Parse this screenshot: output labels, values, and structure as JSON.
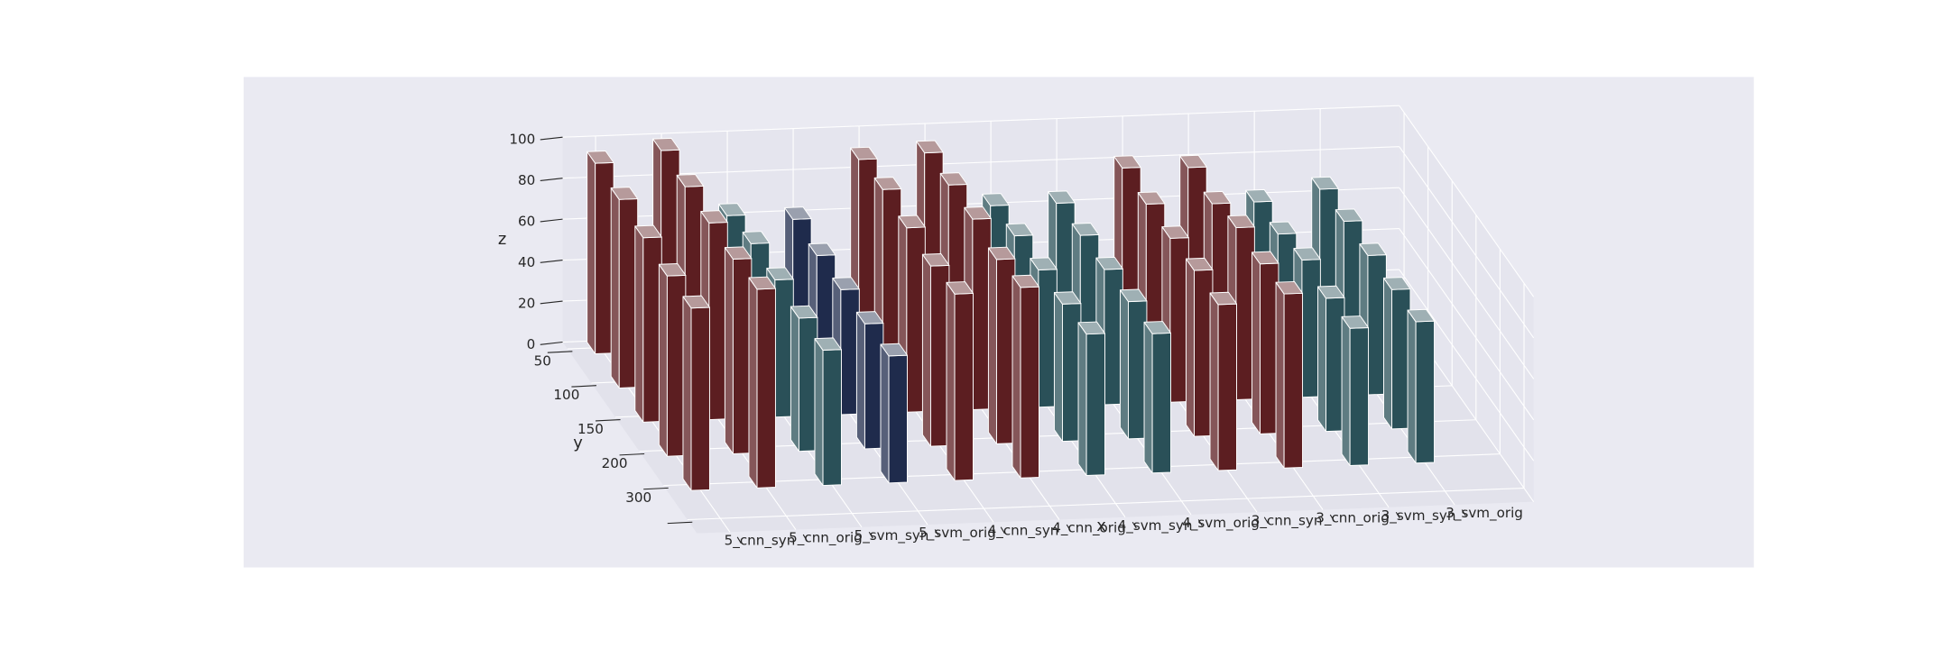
{
  "chart_data": {
    "type": "bar3d",
    "x_label": "x",
    "y_label": "y",
    "z_label": "z",
    "categories": [
      "5_cnn_syn",
      "5_cnn_orig",
      "5_svm_syn",
      "5_svm_orig",
      "4_cnn_syn",
      "4_cnn_orig",
      "4_svm_syn",
      "4_svm_orig",
      "3_cnn_syn",
      "3_cnn_orig",
      "3_svm_syn",
      "3_svm_orig"
    ],
    "y_categories": [
      "50",
      "100",
      "150",
      "200",
      "300",
      null
    ],
    "values": [
      [
        93,
        92,
        90,
        88,
        89,
        null
      ],
      [
        98,
        97,
        96,
        95,
        97,
        null
      ],
      [
        65,
        68,
        67,
        65,
        66,
        null
      ],
      [
        62,
        61,
        61,
        61,
        62,
        null
      ],
      [
        90,
        92,
        90,
        88,
        91,
        null
      ],
      [
        92,
        93,
        93,
        90,
        93,
        null
      ],
      [
        65,
        67,
        67,
        67,
        69,
        null
      ],
      [
        65,
        66,
        66,
        67,
        68,
        null
      ],
      [
        81,
        80,
        80,
        81,
        81,
        null
      ],
      [
        80,
        79,
        84,
        83,
        85,
        null
      ],
      [
        62,
        63,
        67,
        65,
        67,
        null
      ],
      [
        67,
        68,
        68,
        68,
        69,
        null
      ]
    ],
    "colors": [
      "#5c1e21",
      "#5c1e21",
      "#2a5058",
      "#1f2b4c",
      "#5c1e21",
      "#5c1e21",
      "#2a5058",
      "#2a5058",
      "#5c1e21",
      "#5c1e21",
      "#2a5058",
      "#2a5058"
    ],
    "zlim": [
      0,
      100
    ],
    "zticks": [
      0,
      20,
      40,
      60,
      80,
      100
    ],
    "grid": true
  }
}
